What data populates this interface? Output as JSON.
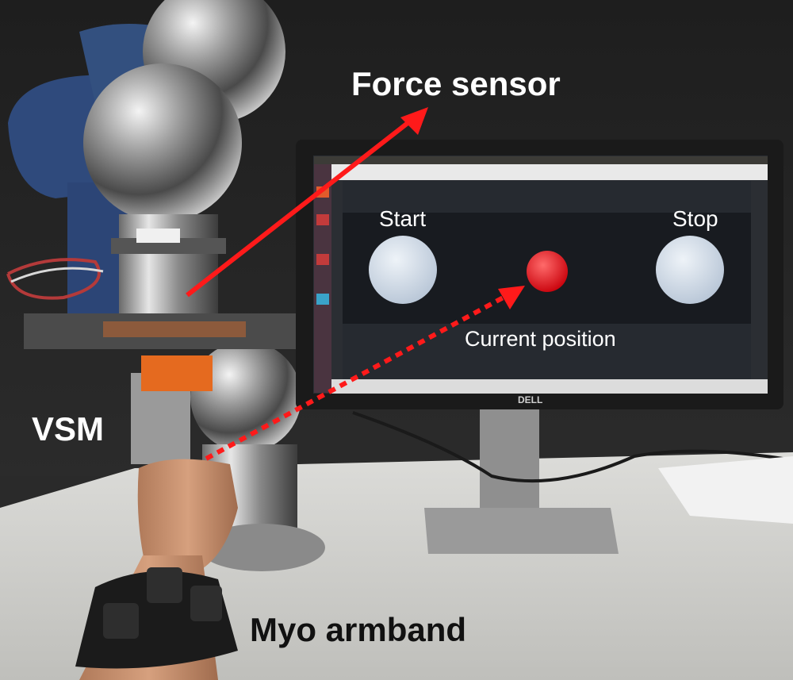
{
  "annotations": {
    "force_sensor": "Force sensor",
    "vsm": "VSM",
    "myo_armband": "Myo armband"
  },
  "screen": {
    "start_label": "Start",
    "stop_label": "Stop",
    "current_position_label": "Current position",
    "monitor_brand": "DELL"
  },
  "colors": {
    "arrow": "#ff1a1a",
    "label_text_light": "#ffffff",
    "label_text_dark": "#111111",
    "target_circle": "#c9d6e6",
    "cursor": "#e0101a"
  }
}
